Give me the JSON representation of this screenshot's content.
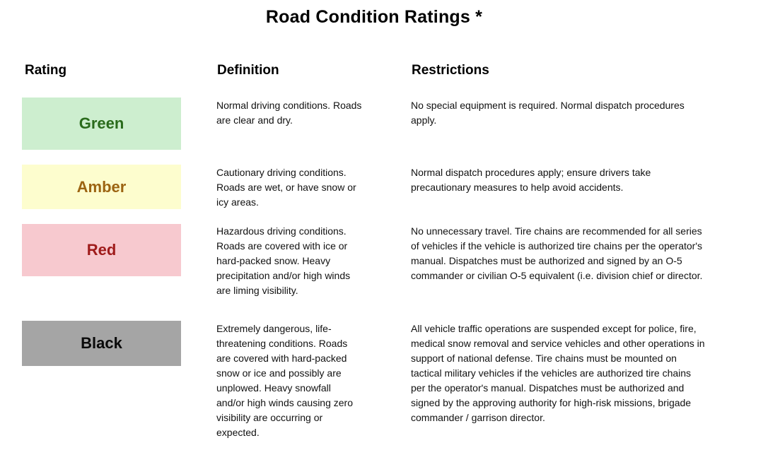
{
  "title": "Road Condition Ratings *",
  "columns": {
    "rating": "Rating",
    "definition": "Definition",
    "restrictions": "Restrictions"
  },
  "rows": [
    {
      "rating": "Green",
      "bg_color": "#cdeecf",
      "text_color": "#2a6b1c",
      "definition": "Normal driving conditions. Roads\nare clear and dry.",
      "restrictions": "No special equipment is required. Normal dispatch procedures\napply."
    },
    {
      "rating": "Amber",
      "bg_color": "#fdfdce",
      "text_color": "#9c6412",
      "definition": "Cautionary driving conditions.\nRoads are wet, or have snow or\nicy areas.",
      "restrictions": "Normal dispatch procedures apply; ensure drivers take\nprecautionary measures to help avoid accidents."
    },
    {
      "rating": "Red",
      "bg_color": "#f7c9cf",
      "text_color": "#9f1b1b",
      "definition": "Hazardous driving conditions.\nRoads are covered with ice or\nhard-packed snow. Heavy\nprecipitation and/or high winds\nare liming visibility.",
      "restrictions": "No unnecessary travel. Tire chains are recommended for all series\nof vehicles if the vehicle is authorized tire chains per the operator's\nmanual. Dispatches must be authorized and signed by an O-5\ncommander or civilian O-5 equivalent (i.e. division chief or director."
    },
    {
      "rating": "Black",
      "bg_color": "#a5a5a5",
      "text_color": "#0a0a0a",
      "definition": "Extremely dangerous, life-\nthreatening conditions. Roads\nare covered  with hard-packed\nsnow or ice  and possibly are\nunplowed. Heavy snowfall\nand/or high winds causing zero\nvisibility are occurring or\nexpected.",
      "restrictions": "All vehicle traffic operations are suspended except for police, fire,\nmedical snow removal and service vehicles and other operations in\nsupport of national defense. Tire chains must be mounted on\ntactical military vehicles if  the vehicles are authorized tire chains\nper the operator's manual. Dispatches must be authorized and\nsigned by   the approving authority for high-risk missions, brigade\ncommander / garrison director."
    }
  ]
}
